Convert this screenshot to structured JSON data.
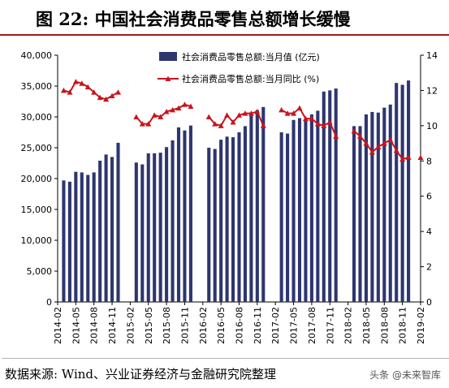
{
  "header": {
    "prefix": "图 22:",
    "title": "中国社会消费品零售总额增长缓慢"
  },
  "source": {
    "text": "数据来源: Wind、兴业证券经济与金融研究院整理"
  },
  "watermark": {
    "text": "头条 @未来智库"
  },
  "chart_data": {
    "type": "bar+line",
    "title": "中国社会消费品零售总额增长缓慢",
    "y_left": {
      "min": 0,
      "max": 40000,
      "ticks": [
        "0",
        "5,000",
        "10,000",
        "15,000",
        "20,000",
        "25,000",
        "30,000",
        "35,000",
        "40,000"
      ]
    },
    "y_right": {
      "min": 0,
      "max": 14,
      "ticks": [
        "0",
        "2",
        "4",
        "6",
        "8",
        "10",
        "12",
        "14"
      ]
    },
    "x_labels": [
      "2014-02",
      "2014-05",
      "2014-08",
      "2014-11",
      "2015-02",
      "2015-05",
      "2015-08",
      "2015-11",
      "2016-02",
      "2016-05",
      "2016-08",
      "2016-11",
      "2017-02",
      "2017-05",
      "2017-08",
      "2017-11",
      "2018-02",
      "2018-05",
      "2018-08",
      "2018-11",
      "2019-02"
    ],
    "series": [
      {
        "name": "社会消费品零售总额:当月值 (亿元)",
        "type": "bar",
        "color": "#2e3670",
        "values": [
          null,
          19700,
          19500,
          21100,
          21000,
          20600,
          21000,
          22900,
          23900,
          23500,
          25800,
          null,
          null,
          22600,
          22300,
          24100,
          24100,
          24200,
          25100,
          26200,
          28300,
          27800,
          28600,
          null,
          null,
          25000,
          24800,
          26300,
          26800,
          26700,
          27500,
          28500,
          30600,
          31100,
          31600,
          null,
          null,
          27500,
          27300,
          29500,
          29800,
          29500,
          30400,
          31000,
          34100,
          34300,
          34600,
          null,
          null,
          28500,
          28500,
          30400,
          30800,
          30700,
          31500,
          32000,
          35500,
          35200,
          35900,
          null,
          null
        ]
      },
      {
        "name": "社会消费品零售总额:当月同比 (%)",
        "type": "line",
        "color": "#c8141e",
        "values": [
          null,
          12.0,
          11.9,
          12.5,
          12.4,
          12.2,
          11.9,
          11.6,
          11.5,
          11.7,
          11.9,
          null,
          null,
          10.5,
          10.1,
          10.1,
          10.6,
          10.5,
          10.8,
          10.9,
          11.0,
          11.2,
          11.1,
          null,
          null,
          10.5,
          10.1,
          10.0,
          10.6,
          10.2,
          10.6,
          10.7,
          10.7,
          10.8,
          10.0,
          null,
          null,
          10.9,
          10.7,
          10.7,
          11.0,
          10.4,
          10.4,
          10.1,
          10.0,
          10.2,
          9.4,
          null,
          null,
          9.7,
          9.4,
          9.0,
          8.5,
          8.8,
          9.0,
          9.2,
          8.6,
          8.1,
          8.2,
          null,
          8.2
        ]
      }
    ],
    "legend_position": "top-center",
    "grid": false
  }
}
